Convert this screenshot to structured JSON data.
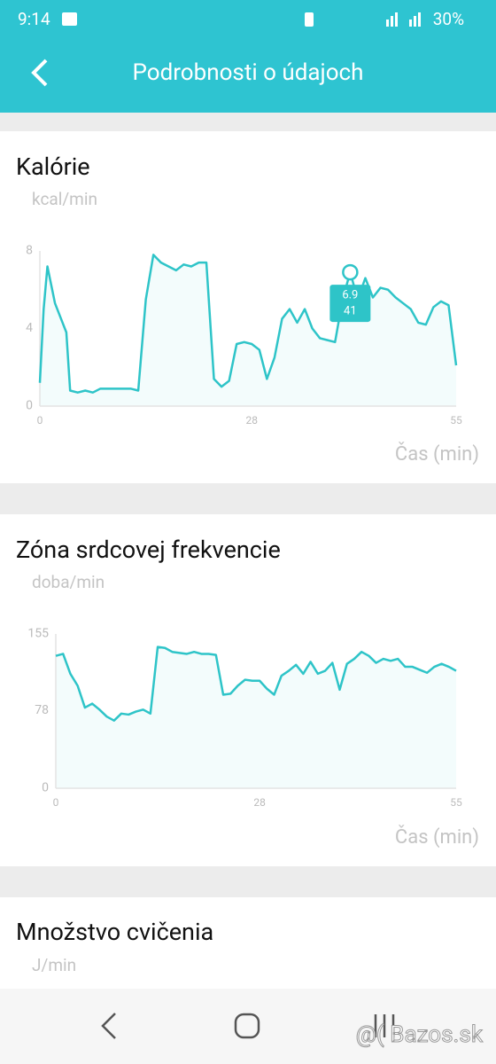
{
  "status_bar": {
    "time": "9:14",
    "battery": "30%"
  },
  "header": {
    "title": "Podrobnosti o údajoch"
  },
  "chart_data": [
    {
      "type": "line",
      "title": "Kalórie",
      "y_label": "kcal/min",
      "x_label": "Čas (min)",
      "color": "#2ec4c8",
      "xlim": [
        0,
        55
      ],
      "ylim": [
        0,
        8
      ],
      "xticks": [
        0,
        28,
        55
      ],
      "yticks": [
        0,
        4,
        8
      ],
      "x": [
        0,
        0.5,
        1,
        2,
        3,
        3.5,
        4,
        5,
        6,
        7,
        8,
        9,
        10,
        11,
        12,
        13,
        14,
        15,
        16,
        17,
        18,
        19,
        20,
        21,
        22,
        23,
        24,
        25,
        26,
        27,
        28,
        29,
        30,
        31,
        32,
        33,
        34,
        35,
        36,
        37,
        38,
        39,
        40,
        41,
        42,
        43,
        44,
        45,
        46,
        47,
        48,
        49,
        50,
        51,
        52,
        53,
        54,
        55
      ],
      "values": [
        1.2,
        5,
        7.2,
        5.3,
        4.3,
        3.8,
        0.8,
        0.7,
        0.8,
        0.7,
        0.9,
        0.9,
        0.9,
        0.9,
        0.9,
        0.8,
        5.5,
        7.8,
        7.4,
        7.2,
        7.0,
        7.3,
        7.2,
        7.4,
        7.4,
        1.4,
        1.0,
        1.3,
        3.2,
        3.3,
        3.2,
        2.9,
        1.4,
        2.5,
        4.5,
        5.0,
        4.3,
        5.0,
        4.0,
        3.5,
        3.4,
        3.3,
        5.5,
        6.9,
        5.5,
        6.6,
        5.6,
        6.1,
        6.0,
        5.6,
        5.3,
        5.0,
        4.3,
        4.2,
        5.1,
        5.4,
        5.2,
        2.1
      ],
      "tooltip": {
        "x": 41,
        "y": 6.9
      }
    },
    {
      "type": "line",
      "title": "Zóna srdcovej frekvencie",
      "y_label": "doba/min",
      "x_label": "Čas (min)",
      "color": "#2ec4c8",
      "xlim": [
        0,
        55
      ],
      "ylim": [
        0,
        155
      ],
      "xticks": [
        0,
        28,
        55
      ],
      "yticks": [
        0,
        78,
        155
      ],
      "x": [
        0,
        1,
        2,
        3,
        4,
        5,
        6,
        7,
        8,
        9,
        10,
        11,
        12,
        13,
        14,
        15,
        16,
        17,
        18,
        19,
        20,
        21,
        22,
        23,
        24,
        25,
        26,
        27,
        28,
        29,
        30,
        31,
        32,
        33,
        34,
        35,
        36,
        37,
        38,
        39,
        40,
        41,
        42,
        43,
        44,
        45,
        46,
        47,
        48,
        49,
        50,
        51,
        52,
        53,
        54,
        55
      ],
      "values": [
        133,
        135,
        115,
        103,
        81,
        85,
        79,
        72,
        68,
        75,
        74,
        77,
        79,
        75,
        142,
        141,
        137,
        136,
        135,
        137,
        135,
        135,
        134,
        94,
        95,
        103,
        109,
        108,
        108,
        100,
        94,
        113,
        118,
        124,
        115,
        127,
        115,
        118,
        126,
        99,
        125,
        130,
        137,
        133,
        126,
        130,
        128,
        130,
        122,
        122,
        119,
        116,
        122,
        125,
        122,
        118
      ]
    }
  ],
  "partial_section": {
    "title": "Množstvo cvičenia",
    "y_label": "J/min"
  },
  "watermark": "@( Bazos.sk"
}
